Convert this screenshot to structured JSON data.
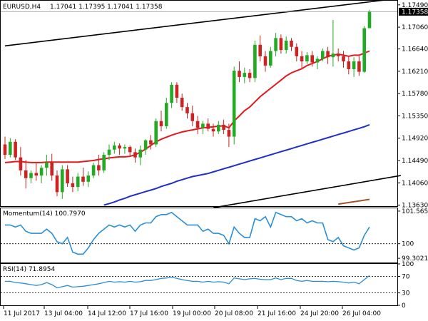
{
  "header": {
    "symbol": "EURUSD,H4",
    "ohlc": "1.17041 1.17395 1.17041 1.17358"
  },
  "colors": {
    "bull": "#22aa22",
    "bear": "#cc2222",
    "ma_red": "#e31a1c",
    "ma_blue": "#1f2fc8",
    "channel": "#000000",
    "osc_line": "#2b8fd6",
    "price_label_bg": "#000000",
    "grid": "#000000"
  },
  "chart_data": [
    {
      "type": "candlestick",
      "title": "EURUSD,H4",
      "price_axis_ticks": [
        "1.17490",
        "1.17060",
        "1.16640",
        "1.16210",
        "1.15780",
        "1.15350",
        "1.14920",
        "1.14490",
        "1.14060",
        "1.13630"
      ],
      "ylim": [
        1.1361,
        1.1757
      ],
      "current_price": "1.17358",
      "x_labels": [
        "11 Jul 2017",
        "13 Jul 04:00",
        "14 Jul 12:00",
        "17 Jul 16:00",
        "19 Jul 00:00",
        "20 Jul 08:00",
        "21 Jul 16:00",
        "24 Jul 20:00",
        "26 Jul 04:00"
      ],
      "candles": [
        {
          "o": 1.148,
          "h": 1.1495,
          "l": 1.1452,
          "c": 1.146
        },
        {
          "o": 1.146,
          "h": 1.1492,
          "l": 1.1455,
          "c": 1.1485
        },
        {
          "o": 1.1485,
          "h": 1.149,
          "l": 1.145,
          "c": 1.1455
        },
        {
          "o": 1.1455,
          "h": 1.1475,
          "l": 1.142,
          "c": 1.143
        },
        {
          "o": 1.143,
          "h": 1.145,
          "l": 1.1395,
          "c": 1.1415
        },
        {
          "o": 1.1415,
          "h": 1.143,
          "l": 1.1405,
          "c": 1.1425
        },
        {
          "o": 1.1425,
          "h": 1.1445,
          "l": 1.141,
          "c": 1.142
        },
        {
          "o": 1.142,
          "h": 1.144,
          "l": 1.1405,
          "c": 1.1435
        },
        {
          "o": 1.1435,
          "h": 1.146,
          "l": 1.142,
          "c": 1.1445
        },
        {
          "o": 1.1445,
          "h": 1.1462,
          "l": 1.141,
          "c": 1.142
        },
        {
          "o": 1.142,
          "h": 1.143,
          "l": 1.138,
          "c": 1.1388
        },
        {
          "o": 1.1388,
          "h": 1.144,
          "l": 1.1375,
          "c": 1.1432
        },
        {
          "o": 1.1432,
          "h": 1.144,
          "l": 1.1398,
          "c": 1.1405
        },
        {
          "o": 1.1405,
          "h": 1.1418,
          "l": 1.1388,
          "c": 1.1398
        },
        {
          "o": 1.1398,
          "h": 1.1425,
          "l": 1.139,
          "c": 1.1418
        },
        {
          "o": 1.1418,
          "h": 1.1435,
          "l": 1.14,
          "c": 1.1408
        },
        {
          "o": 1.1408,
          "h": 1.1428,
          "l": 1.1398,
          "c": 1.142
        },
        {
          "o": 1.142,
          "h": 1.1445,
          "l": 1.1415,
          "c": 1.144
        },
        {
          "o": 1.144,
          "h": 1.146,
          "l": 1.142,
          "c": 1.143
        },
        {
          "o": 1.143,
          "h": 1.1465,
          "l": 1.1425,
          "c": 1.146
        },
        {
          "o": 1.146,
          "h": 1.148,
          "l": 1.145,
          "c": 1.147
        },
        {
          "o": 1.147,
          "h": 1.1485,
          "l": 1.1462,
          "c": 1.1478
        },
        {
          "o": 1.1478,
          "h": 1.1482,
          "l": 1.146,
          "c": 1.1472
        },
        {
          "o": 1.1472,
          "h": 1.148,
          "l": 1.1462,
          "c": 1.1475
        },
        {
          "o": 1.1475,
          "h": 1.1478,
          "l": 1.1458,
          "c": 1.1465
        },
        {
          "o": 1.1465,
          "h": 1.1472,
          "l": 1.1445,
          "c": 1.1455
        },
        {
          "o": 1.1455,
          "h": 1.1478,
          "l": 1.144,
          "c": 1.147
        },
        {
          "o": 1.147,
          "h": 1.149,
          "l": 1.146,
          "c": 1.1488
        },
        {
          "o": 1.1488,
          "h": 1.1498,
          "l": 1.147,
          "c": 1.148
        },
        {
          "o": 1.148,
          "h": 1.153,
          "l": 1.1475,
          "c": 1.1525
        },
        {
          "o": 1.1525,
          "h": 1.1545,
          "l": 1.1505,
          "c": 1.1515
        },
        {
          "o": 1.1515,
          "h": 1.157,
          "l": 1.151,
          "c": 1.156
        },
        {
          "o": 1.156,
          "h": 1.16,
          "l": 1.155,
          "c": 1.1595
        },
        {
          "o": 1.1595,
          "h": 1.16,
          "l": 1.156,
          "c": 1.157
        },
        {
          "o": 1.157,
          "h": 1.1578,
          "l": 1.1545,
          "c": 1.1552
        },
        {
          "o": 1.1552,
          "h": 1.156,
          "l": 1.153,
          "c": 1.154
        },
        {
          "o": 1.154,
          "h": 1.1555,
          "l": 1.1515,
          "c": 1.1525
        },
        {
          "o": 1.1525,
          "h": 1.1535,
          "l": 1.15,
          "c": 1.1512
        },
        {
          "o": 1.1512,
          "h": 1.1525,
          "l": 1.15,
          "c": 1.152
        },
        {
          "o": 1.152,
          "h": 1.153,
          "l": 1.1505,
          "c": 1.151
        },
        {
          "o": 1.151,
          "h": 1.152,
          "l": 1.1495,
          "c": 1.1505
        },
        {
          "o": 1.1505,
          "h": 1.1525,
          "l": 1.15,
          "c": 1.1518
        },
        {
          "o": 1.1518,
          "h": 1.1528,
          "l": 1.15,
          "c": 1.1508
        },
        {
          "o": 1.1508,
          "h": 1.152,
          "l": 1.1475,
          "c": 1.1495
        },
        {
          "o": 1.1495,
          "h": 1.163,
          "l": 1.148,
          "c": 1.1622
        },
        {
          "o": 1.1622,
          "h": 1.164,
          "l": 1.16,
          "c": 1.161
        },
        {
          "o": 1.161,
          "h": 1.1628,
          "l": 1.1598,
          "c": 1.1618
        },
        {
          "o": 1.1618,
          "h": 1.1625,
          "l": 1.16,
          "c": 1.1608
        },
        {
          "o": 1.1608,
          "h": 1.168,
          "l": 1.16,
          "c": 1.1672
        },
        {
          "o": 1.1672,
          "h": 1.169,
          "l": 1.164,
          "c": 1.165
        },
        {
          "o": 1.165,
          "h": 1.166,
          "l": 1.162,
          "c": 1.1632
        },
        {
          "o": 1.1632,
          "h": 1.1668,
          "l": 1.1628,
          "c": 1.166
        },
        {
          "o": 1.166,
          "h": 1.1695,
          "l": 1.165,
          "c": 1.1685
        },
        {
          "o": 1.1685,
          "h": 1.1692,
          "l": 1.1655,
          "c": 1.1662
        },
        {
          "o": 1.1662,
          "h": 1.1688,
          "l": 1.1655,
          "c": 1.168
        },
        {
          "o": 1.168,
          "h": 1.1685,
          "l": 1.166,
          "c": 1.1668
        },
        {
          "o": 1.1668,
          "h": 1.1675,
          "l": 1.164,
          "c": 1.165
        },
        {
          "o": 1.165,
          "h": 1.166,
          "l": 1.1628,
          "c": 1.164
        },
        {
          "o": 1.164,
          "h": 1.1658,
          "l": 1.1635,
          "c": 1.1652
        },
        {
          "o": 1.1652,
          "h": 1.166,
          "l": 1.163,
          "c": 1.1638
        },
        {
          "o": 1.1638,
          "h": 1.165,
          "l": 1.1625,
          "c": 1.1645
        },
        {
          "o": 1.1645,
          "h": 1.1665,
          "l": 1.164,
          "c": 1.166
        },
        {
          "o": 1.166,
          "h": 1.1668,
          "l": 1.1635,
          "c": 1.1648
        },
        {
          "o": 1.1648,
          "h": 1.172,
          "l": 1.163,
          "c": 1.1655
        },
        {
          "o": 1.1655,
          "h": 1.1665,
          "l": 1.164,
          "c": 1.165
        },
        {
          "o": 1.165,
          "h": 1.166,
          "l": 1.1628,
          "c": 1.164
        },
        {
          "o": 1.164,
          "h": 1.165,
          "l": 1.1615,
          "c": 1.1625
        },
        {
          "o": 1.1625,
          "h": 1.1648,
          "l": 1.161,
          "c": 1.164
        },
        {
          "o": 1.164,
          "h": 1.165,
          "l": 1.1612,
          "c": 1.162
        },
        {
          "o": 1.162,
          "h": 1.1708,
          "l": 1.1618,
          "c": 1.1704
        },
        {
          "o": 1.17041,
          "h": 1.17395,
          "l": 1.17041,
          "c": 1.17358
        }
      ],
      "moving_averages": [
        {
          "color_key": "ma_red",
          "values": [
            1.1445,
            1.1446,
            1.1447,
            1.1447,
            1.1446,
            1.1445,
            1.1445,
            1.1445,
            1.1446,
            1.1446,
            1.1446,
            1.1446,
            1.1446,
            1.1446,
            1.1446,
            1.1447,
            1.1448,
            1.1449,
            1.1451,
            1.1452,
            1.1454,
            1.1455,
            1.1456,
            1.1456,
            1.1457,
            1.146,
            1.1465,
            1.1471,
            1.1478,
            1.1485,
            1.149,
            1.1494,
            1.1498,
            1.1501,
            1.1504,
            1.1506,
            1.1508,
            1.151,
            1.1512,
            1.1513,
            1.1514,
            1.1515,
            1.1516,
            1.1512,
            1.1525,
            1.1535,
            1.1545,
            1.1552,
            1.1562,
            1.1572,
            1.158,
            1.1588,
            1.1596,
            1.1604,
            1.1612,
            1.1618,
            1.1622,
            1.1626,
            1.1632,
            1.1636,
            1.164,
            1.1645,
            1.165,
            1.1652,
            1.1654,
            1.1652,
            1.165,
            1.1652,
            1.1652,
            1.1656,
            1.166
          ]
        },
        {
          "color_key": "ma_blue",
          "values": [
            null,
            null,
            null,
            null,
            null,
            null,
            null,
            null,
            null,
            null,
            null,
            null,
            null,
            null,
            null,
            null,
            null,
            null,
            null,
            1.1363,
            1.1366,
            1.1369,
            1.1373,
            1.1376,
            1.138,
            1.1383,
            1.1386,
            1.1389,
            1.1392,
            1.1395,
            1.1399,
            1.1402,
            1.1405,
            1.1409,
            1.1412,
            1.1415,
            1.1418,
            1.142,
            1.1422,
            1.1424,
            1.1427,
            1.143,
            1.1433,
            1.1436,
            1.1439,
            1.1442,
            1.1445,
            1.1448,
            1.1451,
            1.1454,
            1.1457,
            1.146,
            1.1463,
            1.1466,
            1.1469,
            1.1472,
            1.1475,
            1.1478,
            1.1481,
            1.1484,
            1.1487,
            1.149,
            1.1493,
            1.1496,
            1.1499,
            1.1502,
            1.1505,
            1.1508,
            1.1511,
            1.1514,
            1.1518
          ]
        }
      ],
      "channel_lines": [
        {
          "x0": 0,
          "y0": 1.167,
          "x1": 76,
          "y1": 1.1762
        },
        {
          "x0": 40,
          "y0": 1.1358,
          "x1": 76,
          "y1": 1.142
        }
      ]
    },
    {
      "type": "line",
      "title": "Momentum(14) 100.7970",
      "tick_labels": [
        "101.5651",
        "100",
        "99.3021"
      ],
      "ylim": [
        99.1,
        101.7
      ],
      "reference": 100,
      "values": [
        100.9,
        100.9,
        100.8,
        100.9,
        100.6,
        100.5,
        100.5,
        100.5,
        100.7,
        100.5,
        100.1,
        100.0,
        100.3,
        99.6,
        99.5,
        99.5,
        99.8,
        100.2,
        100.5,
        100.7,
        100.9,
        100.8,
        100.9,
        100.8,
        100.9,
        100.6,
        100.9,
        101.0,
        101.0,
        101.3,
        101.4,
        101.4,
        101.5,
        101.3,
        101.1,
        100.9,
        100.9,
        100.9,
        100.6,
        100.7,
        100.5,
        100.5,
        100.4,
        100.0,
        100.8,
        100.5,
        100.3,
        100.3,
        101.2,
        101.1,
        101.3,
        100.8,
        101.5,
        101.4,
        101.3,
        101.3,
        101.1,
        101.2,
        101.0,
        101.1,
        101.0,
        101.0,
        100.2,
        100.1,
        100.3,
        99.9,
        99.8,
        99.7,
        99.8,
        100.4,
        100.8
      ]
    },
    {
      "type": "line",
      "title": "RSI(14) 71.8954",
      "tick_labels": [
        "100",
        "70",
        "30",
        "0"
      ],
      "ylim": [
        0,
        100
      ],
      "levels": [
        70,
        30
      ],
      "values": [
        58,
        58,
        55,
        54,
        52,
        50,
        48,
        50,
        55,
        50,
        42,
        45,
        48,
        44,
        45,
        46,
        48,
        50,
        52,
        55,
        58,
        56,
        57,
        56,
        58,
        56,
        57,
        60,
        60,
        62,
        65,
        66,
        68,
        65,
        62,
        60,
        58,
        58,
        56,
        58,
        56,
        57,
        56,
        52,
        66,
        64,
        62,
        64,
        65,
        63,
        62,
        62,
        66,
        62,
        65,
        65,
        60,
        58,
        60,
        58,
        58,
        58,
        57,
        58,
        57,
        56,
        54,
        56,
        52,
        62,
        72
      ]
    }
  ]
}
